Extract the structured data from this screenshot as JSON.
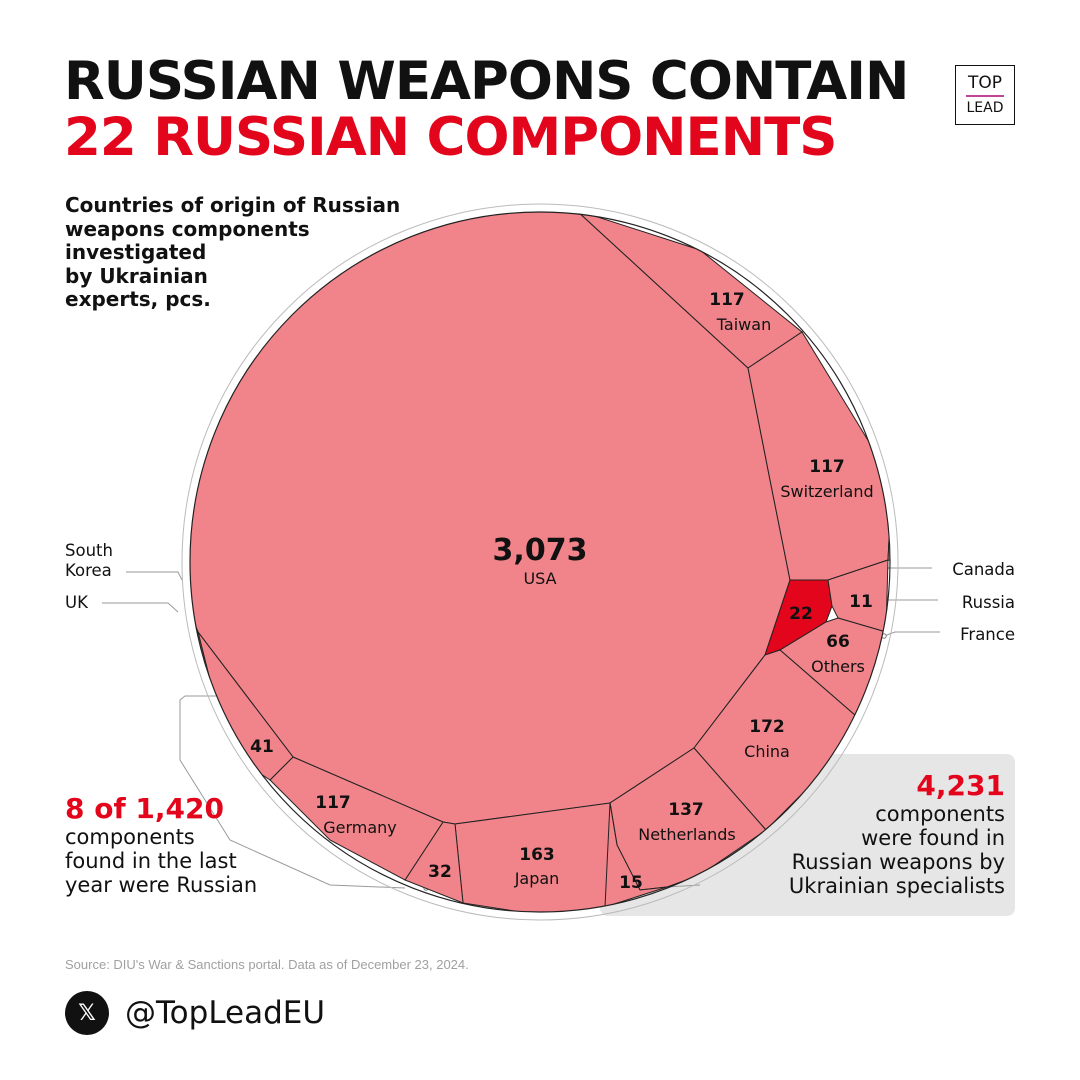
{
  "header": {
    "title_line1": "RUSSIAN WEAPONS CONTAIN",
    "title_line2": "22 RUSSIAN COMPONENTS",
    "subtitle_lines": [
      "Countries of origin of Russian",
      "weapons components",
      "investigated",
      "by Ukrainian",
      "experts, pcs."
    ]
  },
  "logo": {
    "top": "TOP",
    "bottom": "LEAD",
    "underline_color": "#c0449a"
  },
  "colors": {
    "accent": "#e3051b",
    "cell_fill": "#f0848a",
    "russia_fill": "#e3051b",
    "cell_stroke": "#222222"
  },
  "chart_data": {
    "type": "voronoi-treemap",
    "title": "Countries of origin of Russian weapons components investigated by Ukrainian experts, pcs.",
    "unit": "pcs.",
    "total": 4231,
    "cells": [
      {
        "label": "USA",
        "value": 3073,
        "display": "3,073"
      },
      {
        "label": "Taiwan",
        "value": 117,
        "display": "117"
      },
      {
        "label": "Switzerland",
        "value": 117,
        "display": "117"
      },
      {
        "label": "Canada",
        "value": null,
        "display": ""
      },
      {
        "label": "Russia",
        "value": 22,
        "display": "22",
        "highlight": true
      },
      {
        "label": "France",
        "value": 11,
        "display": "11"
      },
      {
        "label": "Others",
        "value": 66,
        "display": "66"
      },
      {
        "label": "China",
        "value": 172,
        "display": "172"
      },
      {
        "label": "Netherlands",
        "value": 137,
        "display": "137"
      },
      {
        "label": "Japan",
        "value": 163,
        "display": "163"
      },
      {
        "label": "",
        "value": 15,
        "display": "15"
      },
      {
        "label": "",
        "value": 32,
        "display": "32"
      },
      {
        "label": "Germany",
        "value": 117,
        "display": "117"
      },
      {
        "label": "",
        "value": 41,
        "display": "41"
      },
      {
        "label": "UK",
        "value": null,
        "display": ""
      },
      {
        "label": "South Korea",
        "value": null,
        "display": ""
      }
    ]
  },
  "external_labels": {
    "south_korea": "South\nKorea",
    "uk": "UK",
    "canada": "Canada",
    "russia": "Russia",
    "france": "France"
  },
  "note_left": {
    "big": "8 of 1,420",
    "lines": [
      "components",
      "found in the last",
      "year were Russian"
    ]
  },
  "note_right": {
    "big": "4,231",
    "lines": [
      "components",
      "were found in",
      "Russian weapons by",
      "Ukrainian specialists"
    ]
  },
  "source": "Source: DIU's War & Sanctions portal. Data as of December 23, 2024.",
  "social": {
    "icon": "x-logo-icon",
    "glyph": "𝕏",
    "handle": "@TopLeadEU"
  }
}
